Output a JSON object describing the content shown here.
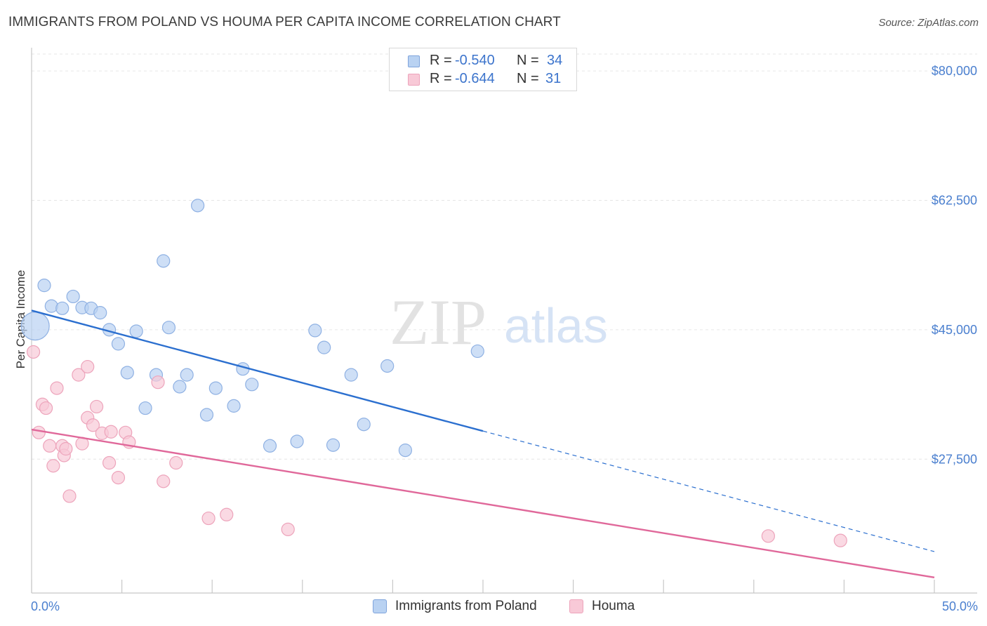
{
  "header": {
    "title": "IMMIGRANTS FROM POLAND VS HOUMA PER CAPITA INCOME CORRELATION CHART",
    "source": "Source: ZipAtlas.com"
  },
  "watermark": {
    "zip": "ZIP",
    "atlas": "atlas"
  },
  "stats_legend": [
    {
      "r_label": "R =",
      "r_value": "-0.540",
      "n_label": "N =",
      "n_value": "34",
      "color": "#a9c6ef"
    },
    {
      "r_label": "R =",
      "r_value": "-0.644",
      "n_label": "N =",
      "n_value": "31",
      "color": "#f5b5c8"
    }
  ],
  "legend": [
    {
      "label": "Immigrants from Poland",
      "color": "#a9c6ef"
    },
    {
      "label": "Houma",
      "color": "#f5b5c8"
    }
  ],
  "colors": {
    "poland_fill": "#b9d2f2",
    "poland_stroke": "#8fb1e3",
    "poland_line": "#2b6fcf",
    "houma_fill": "#f8c9d7",
    "houma_stroke": "#eda4bb",
    "houma_line": "#e0689a",
    "grid": "#e6e6e6",
    "axis_text": "#4a7fcf"
  },
  "chart_data": {
    "type": "scatter",
    "title": "IMMIGRANTS FROM POLAND VS HOUMA PER CAPITA INCOME CORRELATION CHART",
    "xlabel": "",
    "ylabel": "Per Capita Income",
    "xlim": [
      0,
      50
    ],
    "ylim": [
      11200,
      82000
    ],
    "x_tick_labels": [
      "0.0%",
      "50.0%"
    ],
    "y_ticks": [
      27500,
      45000,
      62500,
      80000
    ],
    "y_tick_labels": [
      "$27,500",
      "$45,000",
      "$62,500",
      "$80,000"
    ],
    "grid": true,
    "legend_position": "bottom-center",
    "series": [
      {
        "name": "Immigrants from Poland",
        "r": -0.54,
        "n": 34,
        "points": [
          {
            "x": 0.2,
            "y": 45500,
            "big": true
          },
          {
            "x": 0.7,
            "y": 51000
          },
          {
            "x": 1.1,
            "y": 48200
          },
          {
            "x": 1.7,
            "y": 47900
          },
          {
            "x": 2.3,
            "y": 49500
          },
          {
            "x": 2.8,
            "y": 48000
          },
          {
            "x": 3.3,
            "y": 47900
          },
          {
            "x": 3.8,
            "y": 47300
          },
          {
            "x": 4.3,
            "y": 45000
          },
          {
            "x": 4.8,
            "y": 43100
          },
          {
            "x": 5.3,
            "y": 39200
          },
          {
            "x": 5.8,
            "y": 44800
          },
          {
            "x": 6.3,
            "y": 34400
          },
          {
            "x": 6.9,
            "y": 38900
          },
          {
            "x": 7.3,
            "y": 54300
          },
          {
            "x": 7.6,
            "y": 45300
          },
          {
            "x": 8.2,
            "y": 37300
          },
          {
            "x": 8.6,
            "y": 38900
          },
          {
            "x": 9.2,
            "y": 61800
          },
          {
            "x": 9.7,
            "y": 33500
          },
          {
            "x": 10.2,
            "y": 37100
          },
          {
            "x": 11.2,
            "y": 34700
          },
          {
            "x": 11.7,
            "y": 39700
          },
          {
            "x": 12.2,
            "y": 37600
          },
          {
            "x": 13.2,
            "y": 29300
          },
          {
            "x": 14.7,
            "y": 29900
          },
          {
            "x": 15.7,
            "y": 44900
          },
          {
            "x": 16.2,
            "y": 42600
          },
          {
            "x": 16.7,
            "y": 29400
          },
          {
            "x": 17.7,
            "y": 38900
          },
          {
            "x": 18.4,
            "y": 32200
          },
          {
            "x": 19.7,
            "y": 40100
          },
          {
            "x": 20.7,
            "y": 28700
          },
          {
            "x": 24.7,
            "y": 42100
          }
        ],
        "trend": {
          "x0": 0,
          "y0": 47600,
          "x1": 25,
          "y1": 31300,
          "dashed_to_x": 50,
          "dashed_to_y": 15000
        }
      },
      {
        "name": "Houma",
        "r": -0.644,
        "n": 31,
        "points": [
          {
            "x": 0.1,
            "y": 42000
          },
          {
            "x": 0.4,
            "y": 31100
          },
          {
            "x": 0.6,
            "y": 34900
          },
          {
            "x": 0.8,
            "y": 34400
          },
          {
            "x": 1.0,
            "y": 29300
          },
          {
            "x": 1.2,
            "y": 26600
          },
          {
            "x": 1.4,
            "y": 37100
          },
          {
            "x": 1.7,
            "y": 29300
          },
          {
            "x": 1.8,
            "y": 28000
          },
          {
            "x": 1.9,
            "y": 28900
          },
          {
            "x": 2.1,
            "y": 22500
          },
          {
            "x": 2.6,
            "y": 38900
          },
          {
            "x": 2.8,
            "y": 29600
          },
          {
            "x": 3.1,
            "y": 33100
          },
          {
            "x": 3.1,
            "y": 40000
          },
          {
            "x": 3.4,
            "y": 32100
          },
          {
            "x": 3.6,
            "y": 34600
          },
          {
            "x": 3.9,
            "y": 31000
          },
          {
            "x": 4.3,
            "y": 27000
          },
          {
            "x": 4.4,
            "y": 31200
          },
          {
            "x": 4.8,
            "y": 25000
          },
          {
            "x": 5.2,
            "y": 31100
          },
          {
            "x": 5.4,
            "y": 29800
          },
          {
            "x": 7.0,
            "y": 37900
          },
          {
            "x": 7.3,
            "y": 24500
          },
          {
            "x": 8.0,
            "y": 27000
          },
          {
            "x": 9.8,
            "y": 19500
          },
          {
            "x": 10.8,
            "y": 20000
          },
          {
            "x": 14.2,
            "y": 18000
          },
          {
            "x": 40.8,
            "y": 17100
          },
          {
            "x": 44.8,
            "y": 16500
          }
        ],
        "trend": {
          "x0": 0,
          "y0": 31500,
          "x1": 50,
          "y1": 11500
        }
      }
    ]
  }
}
